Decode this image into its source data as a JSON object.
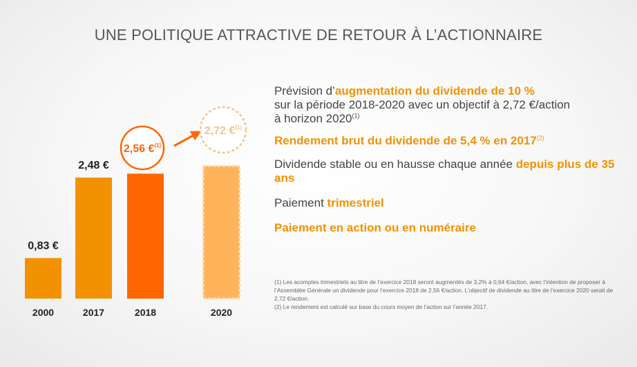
{
  "title": "UNE POLITIQUE ATTRACTIVE DE RETOUR À L’ACTIONNAIRE",
  "chart_data": {
    "type": "bar",
    "categories": [
      "2000",
      "2017",
      "2018",
      "2020"
    ],
    "values": [
      0.83,
      2.48,
      2.56,
      2.72
    ],
    "bar_labels": [
      "0,83 €",
      "2,48 €",
      "2,56 €",
      "2,72 €"
    ],
    "bar_label_sup": "(1)",
    "bar_styles": [
      "actual",
      "actual",
      "forecast",
      "target"
    ],
    "colors": {
      "actual": "#f39200",
      "forecast": "#ff6600",
      "target": "#ffb45c",
      "target_border": "#fde0bd",
      "target_ring": "#f9c288"
    },
    "ylim": [
      0,
      3.2
    ]
  },
  "bullets": {
    "b1_pre": "Prévision d’",
    "b1_bold": "augmentation du dividende de 10 %",
    "b1_line2": "sur la période 2018-2020 avec un objectif à 2,72 €/action",
    "b1_line3": "à horizon 2020",
    "b1_sup": "(1)",
    "b2_bold": "Rendement brut du dividende de 5,4 % en 2017",
    "b2_sup": "(2)",
    "b3_pre": "Dividende stable ou en hausse chaque année ",
    "b3_bold": "depuis plus de 35 ans",
    "b4_pre": "Paiement ",
    "b4_bold": "trimestriel",
    "b5_bold": "Paiement en action ou en numéraire"
  },
  "footnotes": {
    "f1": "(1) Les acomptes trimestriels au titre de l’exercice 2018 seront augmentés de 3,2% à 0,64 €/action, avec l’intention de proposer à l’Assemblée Générale un dividende pour l’exercice 2018 de 2,56 €/action. L’objectif de dividende au titre de l’exercice 2020 serait de 2,72 €/action.",
    "f2": "(2) Le rendement est calculé sur base du cours moyen de l’action sur l’année 2017."
  }
}
